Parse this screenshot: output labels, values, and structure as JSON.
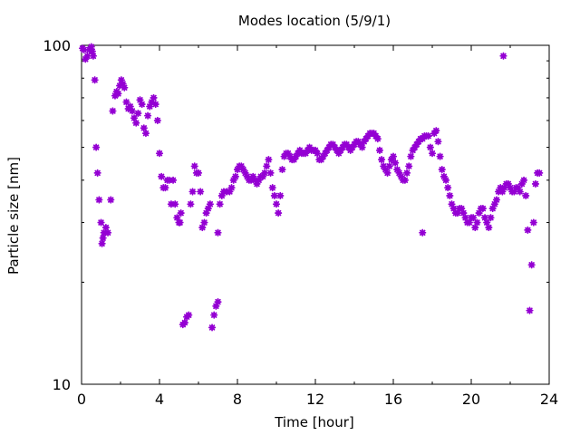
{
  "chart_data": {
    "type": "scatter",
    "title": "Modes location (5/9/1)",
    "xlabel": "Time [hour]",
    "ylabel": "Particle size [nm]",
    "xlim": [
      0,
      24
    ],
    "ylim": [
      10,
      100
    ],
    "yscale": "log",
    "grid": false,
    "marker_color": "#9400d3",
    "x_ticks": [
      {
        "value": 0,
        "label": "0"
      },
      {
        "value": 4,
        "label": "4"
      },
      {
        "value": 8,
        "label": "8"
      },
      {
        "value": 12,
        "label": "12"
      },
      {
        "value": 16,
        "label": "16"
      },
      {
        "value": 20,
        "label": "20"
      },
      {
        "value": 24,
        "label": "24"
      }
    ],
    "y_ticks": [
      {
        "value": 10,
        "label": "10"
      },
      {
        "value": 100,
        "label": "100"
      }
    ],
    "series": [
      {
        "points": [
          [
            0.05,
            98
          ],
          [
            0.12,
            97
          ],
          [
            0.2,
            91
          ],
          [
            0.3,
            93
          ],
          [
            0.4,
            97
          ],
          [
            0.5,
            99
          ],
          [
            0.55,
            96
          ],
          [
            0.6,
            93
          ],
          [
            0.68,
            79
          ],
          [
            0.75,
            50
          ],
          [
            0.82,
            42
          ],
          [
            0.9,
            35
          ],
          [
            1.0,
            30
          ],
          [
            1.05,
            26
          ],
          [
            1.15,
            28
          ],
          [
            1.25,
            29
          ],
          [
            1.35,
            28
          ],
          [
            1.5,
            35
          ],
          [
            1.6,
            64
          ],
          [
            1.72,
            71
          ],
          [
            1.8,
            73
          ],
          [
            1.88,
            72
          ],
          [
            1.96,
            76
          ],
          [
            2.04,
            79
          ],
          [
            2.12,
            77
          ],
          [
            2.2,
            75
          ],
          [
            2.3,
            68
          ],
          [
            2.4,
            65
          ],
          [
            2.5,
            66
          ],
          [
            2.6,
            64
          ],
          [
            2.7,
            61
          ],
          [
            2.8,
            59
          ],
          [
            2.9,
            63
          ],
          [
            3.0,
            69
          ],
          [
            3.1,
            67
          ],
          [
            3.2,
            57
          ],
          [
            3.3,
            55
          ],
          [
            3.4,
            62
          ],
          [
            3.5,
            66
          ],
          [
            3.6,
            68
          ],
          [
            3.7,
            70
          ],
          [
            3.8,
            67
          ],
          [
            3.9,
            60
          ],
          [
            4.0,
            48
          ],
          [
            4.1,
            41
          ],
          [
            4.2,
            38
          ],
          [
            4.3,
            38
          ],
          [
            4.4,
            40
          ],
          [
            4.5,
            40
          ],
          [
            4.6,
            34
          ],
          [
            4.7,
            40
          ],
          [
            4.8,
            34
          ],
          [
            4.9,
            31
          ],
          [
            5.0,
            30
          ],
          [
            5.1,
            32
          ],
          [
            5.2,
            15
          ],
          [
            5.3,
            15.2
          ],
          [
            5.4,
            15.8
          ],
          [
            5.5,
            16
          ],
          [
            5.6,
            34
          ],
          [
            5.7,
            37
          ],
          [
            5.8,
            44
          ],
          [
            5.9,
            42
          ],
          [
            6.0,
            42
          ],
          [
            6.1,
            37
          ],
          [
            6.2,
            29
          ],
          [
            6.3,
            30
          ],
          [
            6.4,
            32
          ],
          [
            6.5,
            33
          ],
          [
            6.6,
            34
          ],
          [
            6.7,
            14.7
          ],
          [
            6.8,
            16
          ],
          [
            6.9,
            17
          ],
          [
            7.0,
            17.5
          ],
          [
            7.1,
            34
          ],
          [
            7.2,
            36
          ],
          [
            7.3,
            37
          ],
          [
            7.45,
            37
          ],
          [
            7.6,
            37
          ],
          [
            7.7,
            38
          ],
          [
            7.8,
            40
          ],
          [
            7.9,
            41
          ],
          [
            8.0,
            43
          ],
          [
            8.1,
            44
          ],
          [
            8.2,
            44
          ],
          [
            8.3,
            43
          ],
          [
            8.4,
            42
          ],
          [
            8.5,
            41
          ],
          [
            8.6,
            40
          ],
          [
            8.7,
            40
          ],
          [
            8.8,
            41
          ],
          [
            8.9,
            40
          ],
          [
            9.0,
            39
          ],
          [
            9.1,
            40
          ],
          [
            9.2,
            41
          ],
          [
            9.3,
            41
          ],
          [
            9.4,
            42
          ],
          [
            9.5,
            44
          ],
          [
            9.6,
            46
          ],
          [
            9.7,
            42
          ],
          [
            9.8,
            38
          ],
          [
            9.9,
            36
          ],
          [
            10.0,
            34
          ],
          [
            10.1,
            32
          ],
          [
            10.2,
            36
          ],
          [
            10.3,
            43
          ],
          [
            10.4,
            47
          ],
          [
            10.5,
            48
          ],
          [
            10.6,
            48
          ],
          [
            10.7,
            47
          ],
          [
            10.8,
            46
          ],
          [
            10.9,
            46
          ],
          [
            11.0,
            47
          ],
          [
            11.1,
            48
          ],
          [
            11.2,
            49
          ],
          [
            11.3,
            48
          ],
          [
            11.4,
            48
          ],
          [
            11.5,
            48
          ],
          [
            11.6,
            49
          ],
          [
            11.7,
            50
          ],
          [
            11.8,
            49
          ],
          [
            11.9,
            49
          ],
          [
            12.0,
            49
          ],
          [
            12.1,
            48
          ],
          [
            12.2,
            46
          ],
          [
            12.3,
            46
          ],
          [
            12.4,
            47
          ],
          [
            12.5,
            48
          ],
          [
            12.6,
            49
          ],
          [
            12.7,
            50
          ],
          [
            12.8,
            51
          ],
          [
            12.9,
            51
          ],
          [
            13.0,
            50
          ],
          [
            13.1,
            49
          ],
          [
            13.2,
            48
          ],
          [
            13.3,
            49
          ],
          [
            13.4,
            50
          ],
          [
            13.5,
            51
          ],
          [
            13.6,
            51
          ],
          [
            13.7,
            50
          ],
          [
            13.8,
            49
          ],
          [
            13.9,
            50
          ],
          [
            14.0,
            51
          ],
          [
            14.1,
            52
          ],
          [
            14.2,
            52
          ],
          [
            14.3,
            51
          ],
          [
            14.4,
            50
          ],
          [
            14.5,
            52
          ],
          [
            14.6,
            53
          ],
          [
            14.7,
            54
          ],
          [
            14.8,
            55
          ],
          [
            14.9,
            55
          ],
          [
            15.0,
            55
          ],
          [
            15.1,
            54
          ],
          [
            15.2,
            53
          ],
          [
            15.3,
            49
          ],
          [
            15.4,
            46
          ],
          [
            15.5,
            44
          ],
          [
            15.6,
            43
          ],
          [
            15.7,
            42
          ],
          [
            15.8,
            44
          ],
          [
            15.9,
            46
          ],
          [
            16.0,
            47
          ],
          [
            16.1,
            45
          ],
          [
            16.2,
            43
          ],
          [
            16.3,
            42
          ],
          [
            16.4,
            41
          ],
          [
            16.5,
            40
          ],
          [
            16.6,
            40
          ],
          [
            16.7,
            42
          ],
          [
            16.8,
            44
          ],
          [
            16.9,
            47
          ],
          [
            17.0,
            49
          ],
          [
            17.1,
            50
          ],
          [
            17.2,
            51
          ],
          [
            17.3,
            52
          ],
          [
            17.4,
            53
          ],
          [
            17.5,
            53
          ],
          [
            17.6,
            54
          ],
          [
            17.7,
            54
          ],
          [
            17.8,
            54
          ],
          [
            17.9,
            50
          ],
          [
            18.0,
            48
          ],
          [
            18.1,
            55
          ],
          [
            18.2,
            56
          ],
          [
            18.3,
            52
          ],
          [
            18.4,
            47
          ],
          [
            18.5,
            43
          ],
          [
            18.6,
            41
          ],
          [
            18.7,
            40
          ],
          [
            18.8,
            38
          ],
          [
            18.9,
            36
          ],
          [
            19.0,
            34
          ],
          [
            19.1,
            33
          ],
          [
            19.2,
            32
          ],
          [
            19.3,
            32
          ],
          [
            19.4,
            33
          ],
          [
            19.5,
            33
          ],
          [
            19.6,
            32
          ],
          [
            19.7,
            31
          ],
          [
            19.8,
            30
          ],
          [
            19.9,
            30
          ],
          [
            20.0,
            31
          ],
          [
            20.1,
            31
          ],
          [
            20.2,
            29
          ],
          [
            20.3,
            30
          ],
          [
            20.4,
            32
          ],
          [
            20.5,
            33
          ],
          [
            20.6,
            33
          ],
          [
            20.7,
            31
          ],
          [
            20.8,
            30
          ],
          [
            20.9,
            29
          ],
          [
            21.0,
            31
          ],
          [
            21.1,
            33
          ],
          [
            21.2,
            34
          ],
          [
            21.3,
            35
          ],
          [
            21.4,
            37
          ],
          [
            21.5,
            38
          ],
          [
            21.6,
            37
          ],
          [
            21.7,
            38
          ],
          [
            21.8,
            39
          ],
          [
            21.9,
            39
          ],
          [
            22.0,
            38
          ],
          [
            22.1,
            37
          ],
          [
            22.2,
            37
          ],
          [
            22.3,
            38
          ],
          [
            22.4,
            38
          ],
          [
            22.5,
            37
          ],
          [
            22.6,
            39
          ],
          [
            22.7,
            40
          ],
          [
            22.8,
            36
          ],
          [
            22.9,
            28.5
          ],
          [
            23.0,
            16.5
          ],
          [
            23.1,
            22.5
          ],
          [
            23.2,
            30
          ],
          [
            23.3,
            39
          ],
          [
            23.4,
            42
          ],
          [
            23.5,
            42
          ],
          [
            17.5,
            28
          ],
          [
            21.65,
            93
          ],
          [
            7.0,
            28
          ],
          [
            5.05,
            30
          ],
          [
            1.1,
            27
          ]
        ]
      }
    ]
  }
}
